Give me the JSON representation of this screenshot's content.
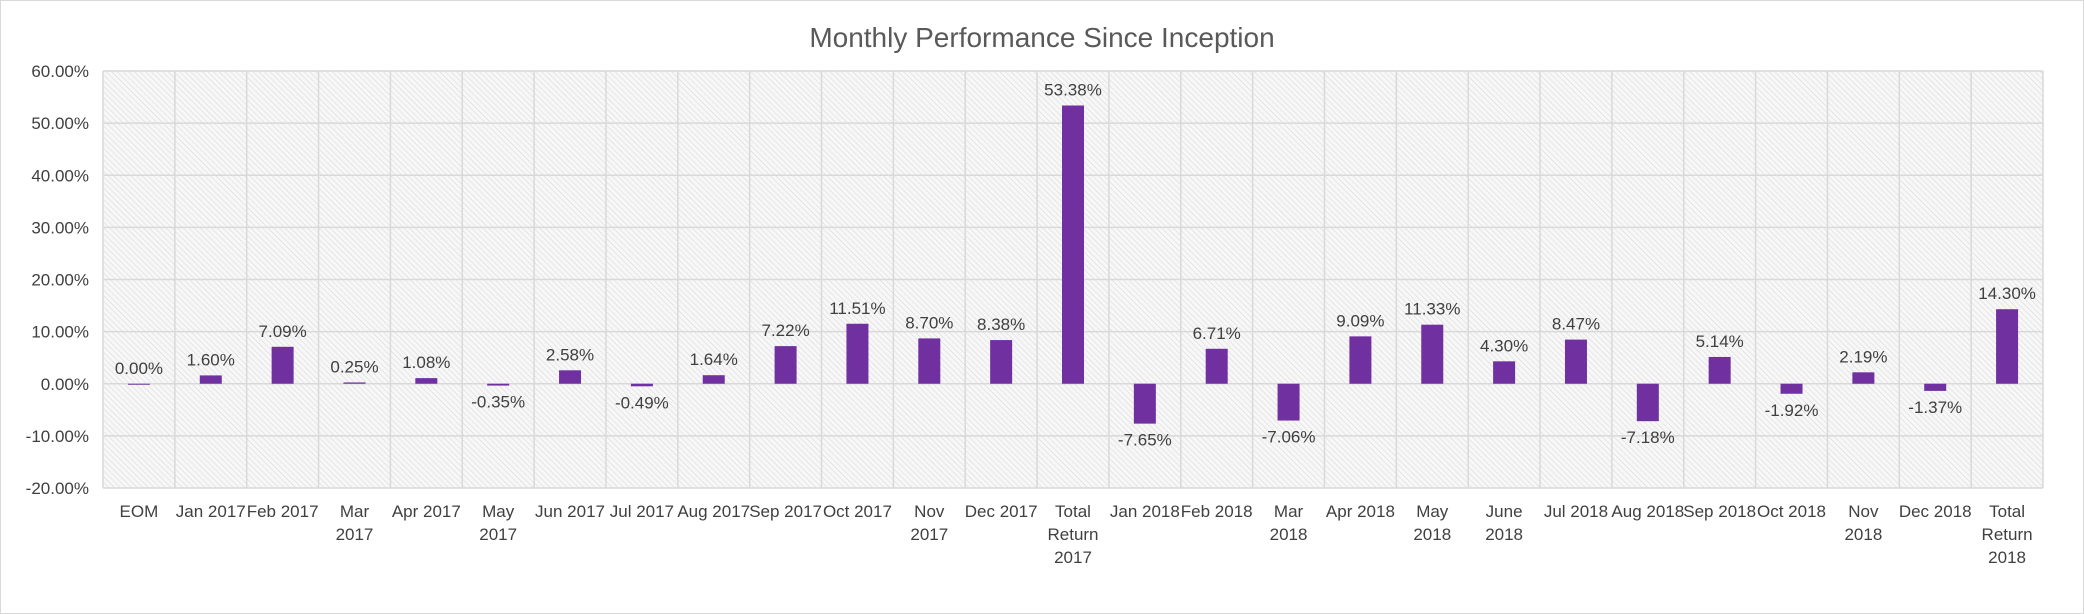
{
  "chart_data": {
    "type": "bar",
    "title": "Monthly Performance Since Inception",
    "xlabel": "",
    "ylabel": "",
    "ylim": [
      -0.2,
      0.6
    ],
    "y_ticks": [
      -0.2,
      -0.1,
      0.0,
      0.1,
      0.2,
      0.3,
      0.4,
      0.5,
      0.6
    ],
    "y_tick_labels": [
      "-20.00%",
      "-10.00%",
      "0.00%",
      "10.00%",
      "20.00%",
      "30.00%",
      "40.00%",
      "50.00%",
      "60.00%"
    ],
    "grid": true,
    "legend": "none",
    "bar_color": "#7030A0",
    "gridline_color": "#d9d9d9",
    "categories": [
      [
        "EOM"
      ],
      [
        "Jan 2017"
      ],
      [
        "Feb 2017"
      ],
      [
        "Mar",
        "2017"
      ],
      [
        "Apr 2017"
      ],
      [
        "May",
        "2017"
      ],
      [
        "Jun 2017"
      ],
      [
        "Jul 2017"
      ],
      [
        "Aug 2017"
      ],
      [
        "Sep 2017"
      ],
      [
        "Oct 2017"
      ],
      [
        "Nov",
        "2017"
      ],
      [
        "Dec 2017"
      ],
      [
        "Total",
        "Return",
        "2017"
      ],
      [
        "Jan 2018"
      ],
      [
        "Feb 2018"
      ],
      [
        "Mar",
        "2018"
      ],
      [
        "Apr 2018"
      ],
      [
        "May",
        "2018"
      ],
      [
        "June",
        "2018"
      ],
      [
        "Jul 2018"
      ],
      [
        "Aug 2018"
      ],
      [
        "Sep 2018"
      ],
      [
        "Oct 2018"
      ],
      [
        "Nov",
        "2018"
      ],
      [
        "Dec 2018"
      ],
      [
        "Total",
        "Return",
        "2018"
      ]
    ],
    "values": [
      0.0,
      0.016,
      0.0709,
      0.0025,
      0.0108,
      -0.0035,
      0.0258,
      -0.0049,
      0.0164,
      0.0722,
      0.1151,
      0.087,
      0.0838,
      0.5338,
      -0.0765,
      0.0671,
      -0.0706,
      0.0909,
      0.1133,
      0.043,
      0.0847,
      -0.0718,
      0.0514,
      -0.0192,
      0.0219,
      -0.0137,
      0.143
    ],
    "data_labels": [
      "0.00%",
      "1.60%",
      "7.09%",
      "0.25%",
      "1.08%",
      "-0.35%",
      "2.58%",
      "-0.49%",
      "1.64%",
      "7.22%",
      "11.51%",
      "8.70%",
      "8.38%",
      "53.38%",
      "-7.65%",
      "6.71%",
      "-7.06%",
      "9.09%",
      "11.33%",
      "4.30%",
      "8.47%",
      "-7.18%",
      "5.14%",
      "-1.92%",
      "2.19%",
      "-1.37%",
      "14.30%"
    ]
  }
}
